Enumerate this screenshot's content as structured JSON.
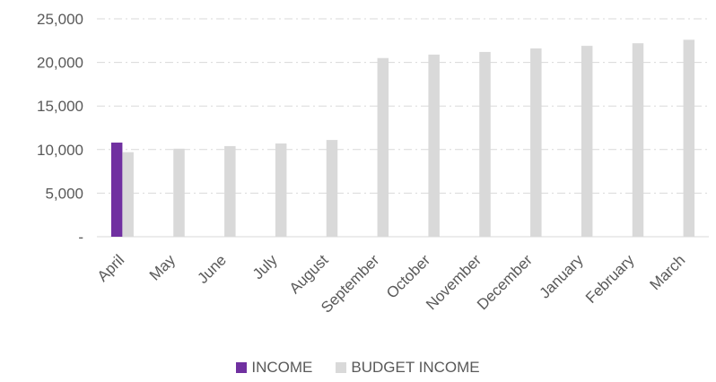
{
  "chart_data": {
    "type": "bar",
    "title": "",
    "xlabel": "",
    "ylabel": "",
    "categories": [
      "April",
      "May",
      "June",
      "July",
      "August",
      "September",
      "October",
      "November",
      "December",
      "January",
      "February",
      "March"
    ],
    "series": [
      {
        "name": "INCOME",
        "color": "#7030A0",
        "values": [
          10800,
          null,
          null,
          null,
          null,
          null,
          null,
          null,
          null,
          null,
          null,
          null
        ]
      },
      {
        "name": "BUDGET INCOME",
        "color": "#D9D9D9",
        "values": [
          9700,
          10100,
          10400,
          10700,
          11100,
          20500,
          20900,
          21200,
          21600,
          21900,
          22200,
          22600
        ]
      }
    ],
    "ylim": [
      0,
      25000
    ],
    "yticks": [
      0,
      5000,
      10000,
      15000,
      20000,
      25000
    ],
    "ytick_labels": [
      "-",
      "5,000",
      "10,000",
      "15,000",
      "20,000",
      "25,000"
    ],
    "grid": true,
    "legend_position": "bottom"
  }
}
